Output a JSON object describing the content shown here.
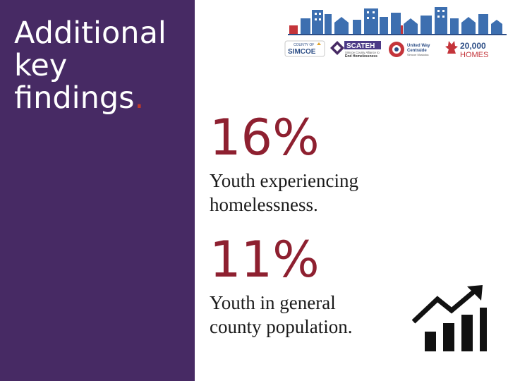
{
  "slide": {
    "title_lines": [
      "Additional",
      "key",
      "findings"
    ],
    "title_punct": ".",
    "colors": {
      "panel": "#472a64",
      "accent": "#8e2030",
      "dot": "#c0392b"
    }
  },
  "logos": {
    "county": {
      "small": "COUNTY OF",
      "name": "SIMCOE"
    },
    "scateh": {
      "name": "SCATEH",
      "tagline_1": "Simcoe County Alliance to",
      "tagline_2": "End Homelessness"
    },
    "united_way": {
      "line_1": "United Way",
      "line_2": "Centraide",
      "line_3": "Simcoe Muskoka"
    },
    "campaign": {
      "line_1": "20,000",
      "line_2": "HOMES"
    },
    "icons": [
      "skyline-icon",
      "crest-icon",
      "maple-leaf-icon",
      "chart-growth-icon"
    ]
  },
  "stats": [
    {
      "value": "16%",
      "desc_1": "Youth experiencing",
      "desc_2": "homelessness."
    },
    {
      "value": "11%",
      "desc_1": "Youth in general",
      "desc_2": "county population."
    }
  ]
}
